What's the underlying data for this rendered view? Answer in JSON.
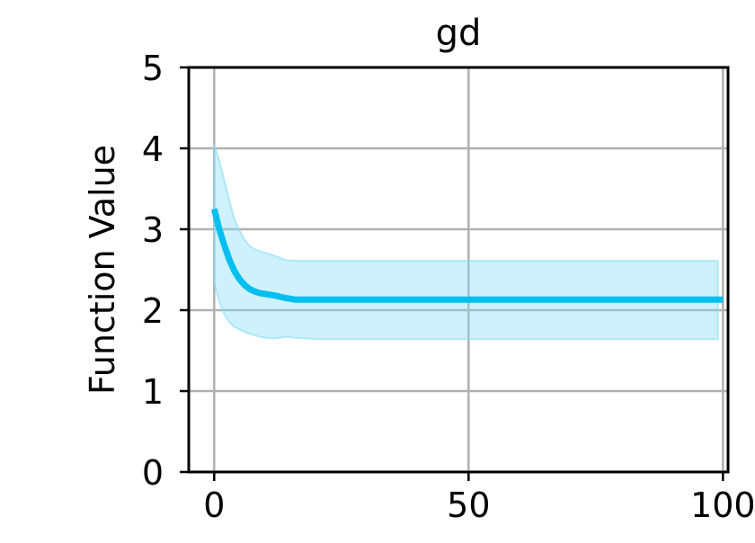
{
  "colors": {
    "line": "#00BFF0",
    "band_fill": "#87DDF5",
    "grid": "#B0B0B0",
    "axis": "#000000"
  },
  "chart_data": {
    "type": "line",
    "title": "gd",
    "xlabel": "",
    "ylabel": "Function Value",
    "xlim": [
      -5,
      101
    ],
    "ylim": [
      0,
      5
    ],
    "xticks": [
      0,
      50,
      100
    ],
    "yticks": [
      0,
      1,
      2,
      3,
      4,
      5
    ],
    "grid": true,
    "series": [
      {
        "x": [
          0,
          1,
          2,
          3,
          4,
          5,
          6,
          7,
          8,
          9,
          10,
          12,
          14,
          16,
          18,
          20,
          25,
          30,
          40,
          50,
          60,
          70,
          80,
          90,
          100
        ],
        "y": [
          3.25,
          3.0,
          2.8,
          2.62,
          2.48,
          2.38,
          2.31,
          2.26,
          2.23,
          2.21,
          2.2,
          2.18,
          2.15,
          2.13,
          2.13,
          2.13,
          2.13,
          2.13,
          2.13,
          2.13,
          2.13,
          2.13,
          2.13,
          2.13,
          2.13
        ]
      }
    ],
    "band": {
      "x": [
        0,
        1,
        2,
        3,
        4,
        5,
        6,
        7,
        8,
        9,
        10,
        12,
        14,
        16,
        18,
        20,
        25,
        30,
        40,
        50,
        60,
        70,
        80,
        90,
        99
      ],
      "upper": [
        4.05,
        3.85,
        3.6,
        3.35,
        3.12,
        2.98,
        2.87,
        2.79,
        2.75,
        2.73,
        2.71,
        2.67,
        2.62,
        2.61,
        2.61,
        2.61,
        2.61,
        2.61,
        2.61,
        2.61,
        2.61,
        2.61,
        2.61,
        2.61,
        2.61
      ],
      "lower": [
        2.35,
        2.1,
        1.95,
        1.85,
        1.79,
        1.76,
        1.73,
        1.71,
        1.69,
        1.67,
        1.66,
        1.65,
        1.67,
        1.66,
        1.65,
        1.64,
        1.64,
        1.64,
        1.64,
        1.64,
        1.64,
        1.64,
        1.64,
        1.64,
        1.64
      ]
    }
  }
}
